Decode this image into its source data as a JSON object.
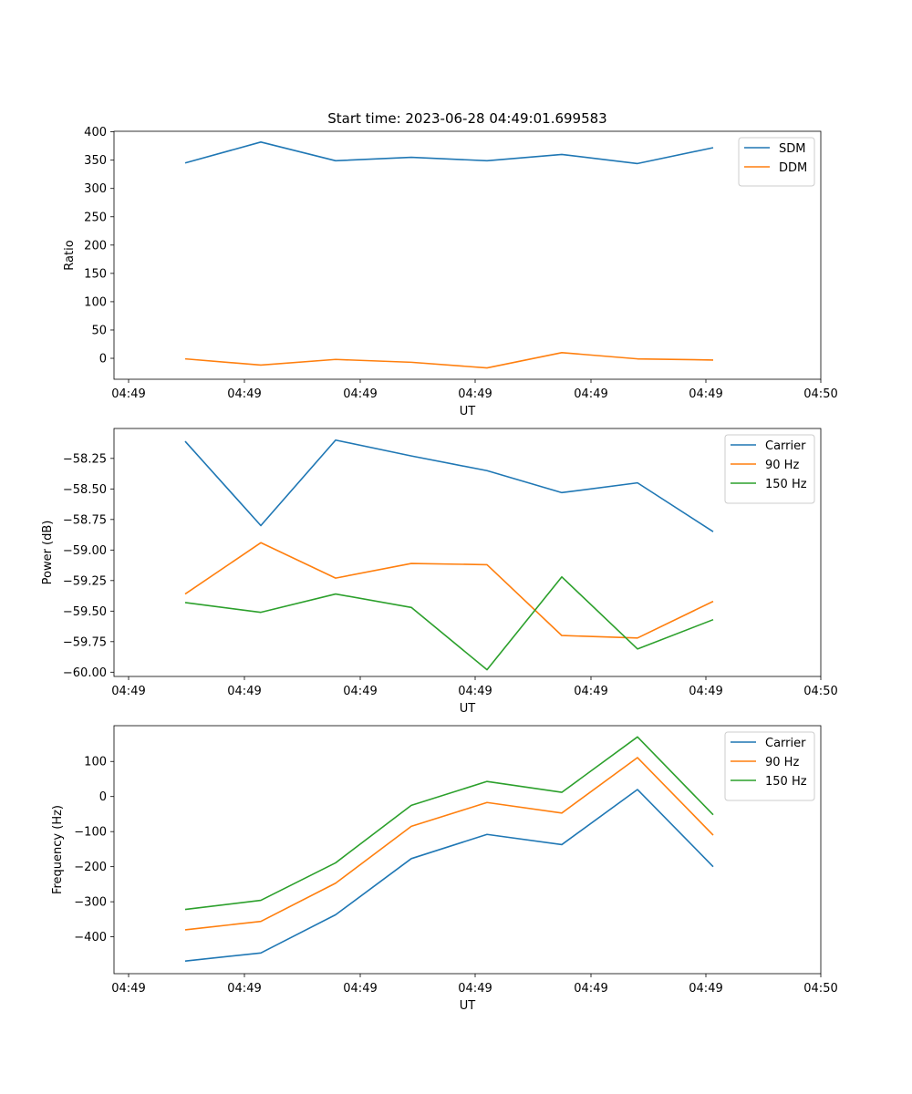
{
  "chart_data": [
    {
      "type": "line",
      "title": "Start time: 2023-06-28 04:49:01.699583",
      "xlabel": "UT",
      "ylabel": "Ratio",
      "x_tick_labels": [
        "04:49",
        "04:49",
        "04:49",
        "04:49",
        "04:49",
        "04:49",
        "04:50"
      ],
      "y_ticks": [
        0,
        50,
        100,
        150,
        200,
        250,
        300,
        350,
        400
      ],
      "y_tick_labels": [
        "0",
        "50",
        "100",
        "150",
        "200",
        "250",
        "300",
        "350",
        "400"
      ],
      "ylim": [
        -37,
        401
      ],
      "grid": false,
      "legend": "top-right",
      "series": [
        {
          "name": "SDM",
          "color": "#1f77b4",
          "values": [
            345,
            382,
            349,
            355,
            349,
            360,
            344,
            372
          ]
        },
        {
          "name": "DDM",
          "color": "#ff7f0e",
          "values": [
            -1,
            -12,
            -2,
            -7,
            -17,
            10,
            -1,
            -3
          ]
        }
      ]
    },
    {
      "type": "line",
      "title": "",
      "xlabel": "UT",
      "ylabel": "Power (dB)",
      "x_tick_labels": [
        "04:49",
        "04:49",
        "04:49",
        "04:49",
        "04:49",
        "04:49",
        "04:50"
      ],
      "y_ticks": [
        -60.0,
        -59.75,
        -59.5,
        -59.25,
        -59.0,
        -58.75,
        -58.5,
        -58.25
      ],
      "y_tick_labels": [
        "−60.00",
        "−59.75",
        "−59.50",
        "−59.25",
        "−59.00",
        "−58.75",
        "−58.50",
        "−58.25"
      ],
      "ylim": [
        -60.035,
        -58.005
      ],
      "grid": false,
      "legend": "top-right",
      "series": [
        {
          "name": "Carrier",
          "color": "#1f77b4",
          "values": [
            -58.11,
            -58.8,
            -58.1,
            -58.23,
            -58.35,
            -58.53,
            -58.45,
            -58.85
          ]
        },
        {
          "name": "90 Hz",
          "color": "#ff7f0e",
          "values": [
            -59.36,
            -58.94,
            -59.23,
            -59.11,
            -59.12,
            -59.7,
            -59.72,
            -59.42
          ]
        },
        {
          "name": "150 Hz",
          "color": "#2ca02c",
          "values": [
            -59.43,
            -59.51,
            -59.36,
            -59.47,
            -59.98,
            -59.22,
            -59.81,
            -59.57
          ]
        }
      ]
    },
    {
      "type": "line",
      "title": "",
      "xlabel": "UT",
      "ylabel": "Frequency (Hz)",
      "x_tick_labels": [
        "04:49",
        "04:49",
        "04:49",
        "04:49",
        "04:49",
        "04:49",
        "04:50"
      ],
      "y_ticks": [
        -400,
        -300,
        -200,
        -100,
        0,
        100
      ],
      "y_tick_labels": [
        "−400",
        "−300",
        "−200",
        "−100",
        "0",
        "100"
      ],
      "ylim": [
        -505,
        202
      ],
      "grid": false,
      "legend": "top-right",
      "series": [
        {
          "name": "Carrier",
          "color": "#1f77b4",
          "values": [
            -469,
            -446,
            -337,
            -177,
            -108,
            -137,
            20,
            -200
          ]
        },
        {
          "name": "90 Hz",
          "color": "#ff7f0e",
          "values": [
            -380,
            -356,
            -247,
            -85,
            -17,
            -47,
            111,
            -110
          ]
        },
        {
          "name": "150 Hz",
          "color": "#2ca02c",
          "values": [
            -322,
            -296,
            -189,
            -25,
            43,
            12,
            170,
            -52
          ]
        }
      ]
    }
  ]
}
